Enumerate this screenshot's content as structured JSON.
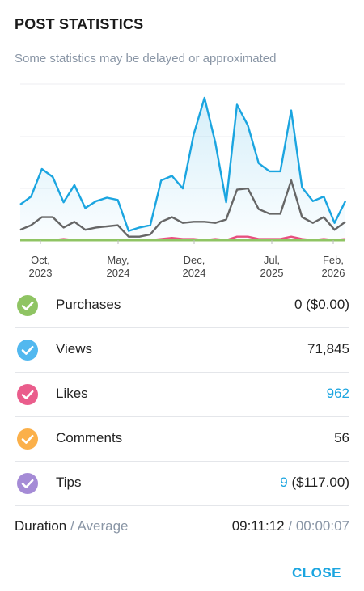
{
  "header": {
    "title": "POST STATISTICS",
    "subtitle": "Some statistics may be delayed or approximated"
  },
  "chart_data": {
    "type": "line",
    "x_tick_labels": [
      [
        "Oct,",
        "2023"
      ],
      [
        "May,",
        "2024"
      ],
      [
        "Dec,",
        "2024"
      ],
      [
        "Jul,",
        "2025"
      ],
      [
        "Feb,",
        "2026"
      ]
    ],
    "x_tick_index": [
      2,
      12,
      22,
      32,
      42
    ],
    "ylim": [
      0,
      100
    ],
    "grid": true,
    "series": [
      {
        "color": "#1ba5e0",
        "area": true,
        "values": [
          31,
          38,
          62,
          55,
          33,
          48,
          28,
          34,
          37,
          35,
          8,
          11,
          13,
          52,
          56,
          45,
          92,
          124,
          85,
          33,
          118,
          100,
          67,
          60,
          60,
          113,
          46,
          34,
          38,
          15,
          34
        ]
      },
      {
        "color": "#666666",
        "area": false,
        "values": [
          9,
          13,
          20,
          20,
          11,
          16,
          9,
          11,
          12,
          13,
          3,
          3,
          5,
          16,
          20,
          15,
          16,
          16,
          15,
          18,
          44,
          45,
          27,
          23,
          23,
          52,
          20,
          15,
          20,
          9,
          16
        ]
      },
      {
        "color": "#e8507f",
        "area": false,
        "values": [
          0,
          0,
          0,
          0,
          1,
          0,
          0,
          0,
          0,
          0,
          0,
          0,
          0,
          1,
          2,
          1,
          1,
          0,
          1,
          0,
          3,
          3,
          1,
          1,
          1,
          3,
          1,
          0,
          1,
          0,
          1
        ]
      },
      {
        "color": "#8fc463",
        "area": false,
        "values": [
          0,
          0,
          0,
          0,
          0,
          0,
          0,
          0,
          0,
          0,
          0,
          0,
          0,
          0,
          0,
          0,
          0,
          0,
          0,
          0,
          0,
          0,
          0,
          0,
          0,
          0,
          0,
          0,
          0,
          0,
          0
        ]
      }
    ]
  },
  "stats": {
    "rows": [
      {
        "label": "Purchases",
        "value": "0 ($0.00)",
        "value_main": "0",
        "value_extra": " ($0.00)",
        "main_blue": false,
        "color": "#8fc463"
      },
      {
        "label": "Views",
        "value": "71,845",
        "value_main": "71,845",
        "value_extra": "",
        "main_blue": false,
        "color": "#52b8ef"
      },
      {
        "label": "Likes",
        "value": "962",
        "value_main": "962",
        "value_extra": "",
        "main_blue": true,
        "color": "#ea5d8c"
      },
      {
        "label": "Comments",
        "value": "56",
        "value_main": "56",
        "value_extra": "",
        "main_blue": false,
        "color": "#fbb04a"
      },
      {
        "label": "Tips",
        "value": "9 ($117.00)",
        "value_main": "9",
        "value_extra": " ($117.00)",
        "main_blue": true,
        "color": "#a58bd6"
      }
    ]
  },
  "duration": {
    "label": "Duration",
    "separator": " / ",
    "label_muted": "Average",
    "value": "09:11:12",
    "value_muted": "00:00:07"
  },
  "footer": {
    "close_label": "CLOSE"
  }
}
